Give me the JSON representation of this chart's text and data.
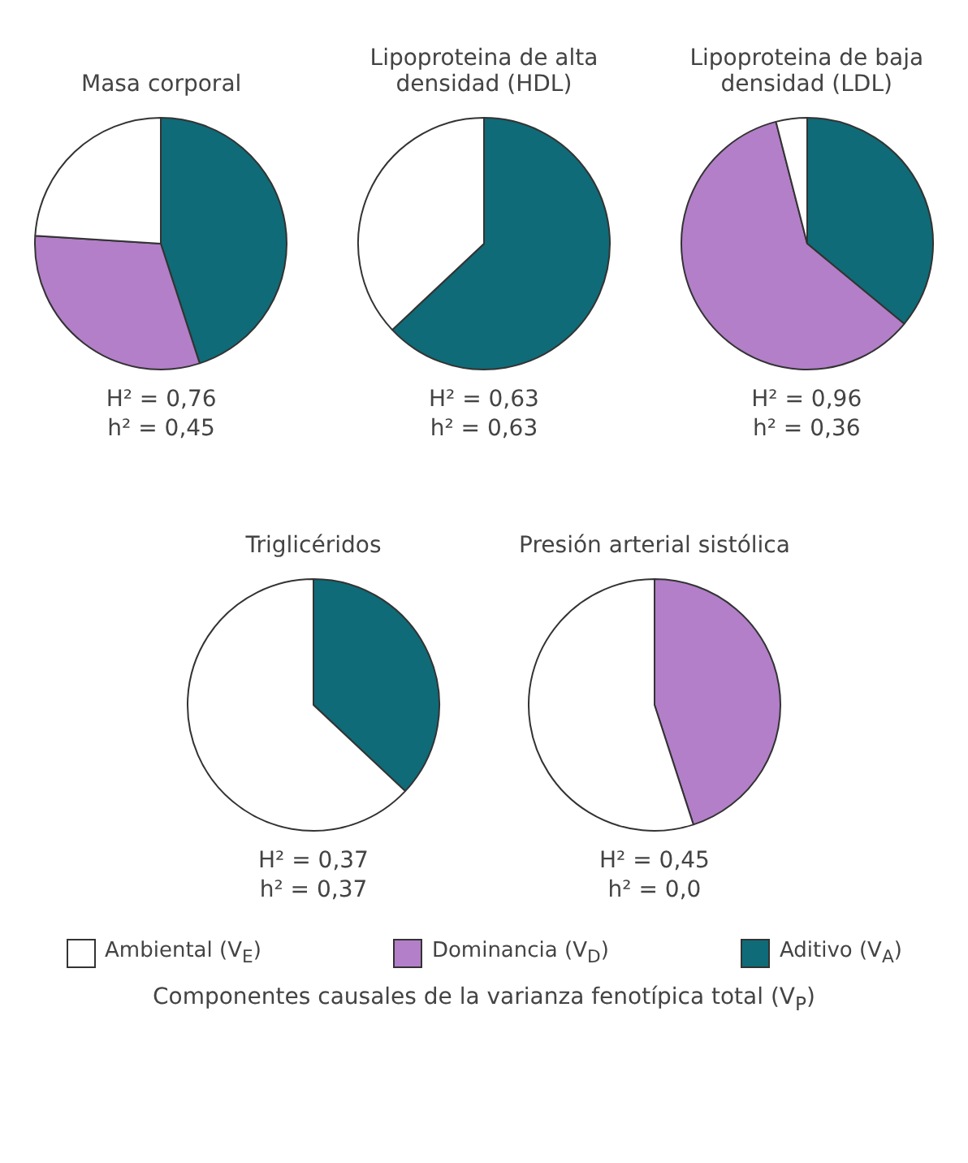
{
  "chart_data": [
    {
      "type": "pie",
      "title": "Masa corporal",
      "categories": [
        "Ambiental (V$_{E}$)",
        "Dominancia (V$_{D}$)",
        "Aditivo (V$_{A}$)"
      ],
      "values": [
        24,
        31,
        45
      ],
      "colors": [
        "#ffffff",
        "#b27fc8",
        "#0f6b78"
      ],
      "annotations": [
        "H² = 0,76",
        "h² = 0,45",
        "Componentes causales de la varianza fenotípica total (V$_{P}$)"
      ],
      "legend": "bottom"
    },
    {
      "type": "pie",
      "title": "Lipoproteina de alta densidad (HDL)",
      "categories": [
        null,
        null,
        null
      ],
      "values": [
        37,
        0,
        63
      ],
      "colors": [
        "#ffffff",
        "#b27fc8",
        "#0f6b78"
      ],
      "annotations": [
        "H² = 0,63",
        "h² = 0,63"
      ]
    },
    {
      "type": "pie",
      "title": "Lipoproteina de baja densidad (LDL)",
      "categories": [
        null,
        null,
        null
      ],
      "values": [
        4,
        60,
        36
      ],
      "colors": [
        "#ffffff",
        "#b27fc8",
        "#0f6b78"
      ],
      "annotations": [
        "H² = 0,96",
        "h² = 0,36"
      ]
    },
    {
      "type": "pie",
      "title": "Triglicéridos",
      "categories": [
        null,
        null,
        null
      ],
      "values": [
        63,
        0,
        37
      ],
      "colors": [
        "#ffffff",
        "#b27fc8",
        "#0f6b78"
      ],
      "annotations": [
        "H² = 0,37",
        "h² = 0,37"
      ]
    },
    {
      "type": "pie",
      "title": "Presión arterial sistólica",
      "categories": [
        null,
        null,
        null
      ],
      "values": [
        55,
        45,
        0
      ],
      "colors": [
        "#ffffff",
        "#b27fc8",
        "#0f6b78"
      ],
      "annotations": [
        "H² = 0,45",
        "h² = 0,0"
      ]
    }
  ]
}
